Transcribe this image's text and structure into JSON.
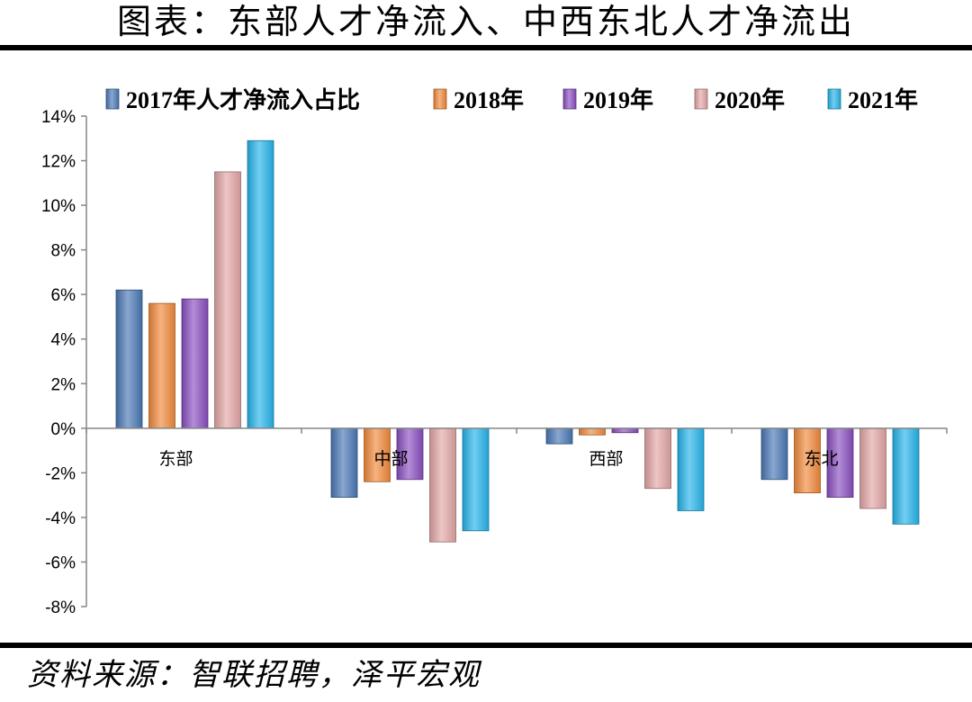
{
  "title": "图表：东部人才净流入、中西东北人才净流出",
  "source": "资料来源：智联招聘，泽平宏观",
  "chart_data": {
    "type": "bar",
    "categories": [
      "东部",
      "中部",
      "西部",
      "东北"
    ],
    "series": [
      {
        "name": "2017年人才净流入占比",
        "values": [
          6.2,
          -3.1,
          -0.7,
          -2.3
        ],
        "color": "#4a78b5"
      },
      {
        "name": "2018年",
        "values": [
          5.6,
          -2.4,
          -0.3,
          -2.9
        ],
        "color": "#f18a3c"
      },
      {
        "name": "2019年",
        "values": [
          5.8,
          -2.3,
          -0.2,
          -3.1
        ],
        "color": "#8a4fc0"
      },
      {
        "name": "2020年",
        "values": [
          11.5,
          -5.1,
          -2.7,
          -3.6
        ],
        "color": "#e3a6a6"
      },
      {
        "name": "2021年",
        "values": [
          12.9,
          -4.6,
          -3.7,
          -4.3
        ],
        "color": "#26b4ea"
      }
    ],
    "ylim": [
      -8,
      14
    ],
    "yticks": [
      14,
      12,
      10,
      8,
      6,
      4,
      2,
      0,
      -2,
      -4,
      -6,
      -8
    ],
    "ytick_labels": [
      "14%",
      "12%",
      "10%",
      "8%",
      "6%",
      "4%",
      "2%",
      "0%",
      "-2%",
      "-4%",
      "-6%",
      "-8%"
    ],
    "legend_position": "top",
    "xlabel": "",
    "ylabel": ""
  }
}
